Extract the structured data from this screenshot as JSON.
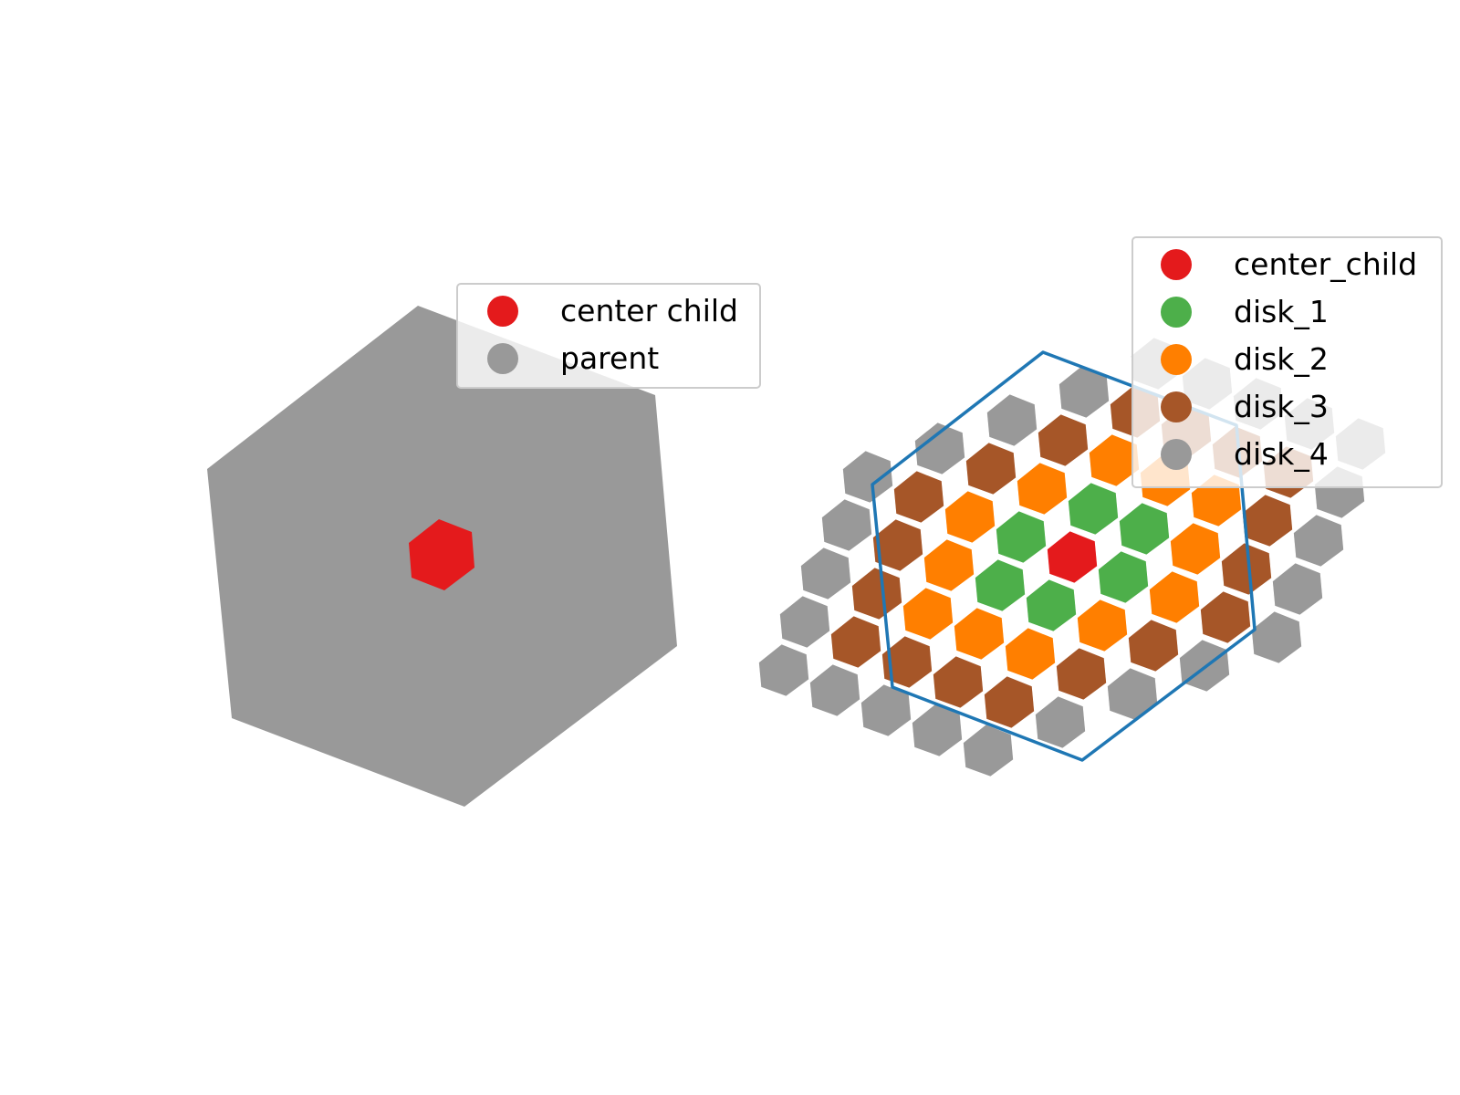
{
  "figure": {
    "left_panel": {
      "legend": [
        {
          "label": "center child",
          "color": "#e41a1c"
        },
        {
          "label": "parent",
          "color": "#999999"
        }
      ]
    },
    "right_panel": {
      "legend": [
        {
          "label": "center_child",
          "color": "#e41a1c"
        },
        {
          "label": "disk_1",
          "color": "#4daf4a"
        },
        {
          "label": "disk_2",
          "color": "#ff7f00"
        },
        {
          "label": "disk_3",
          "color": "#a65628"
        },
        {
          "label": "disk_4",
          "color": "#999999"
        }
      ],
      "outline_color": "#1f77b4",
      "ring_colors": [
        "#e41a1c",
        "#4daf4a",
        "#ff7f00",
        "#a65628",
        "#999999"
      ]
    }
  }
}
